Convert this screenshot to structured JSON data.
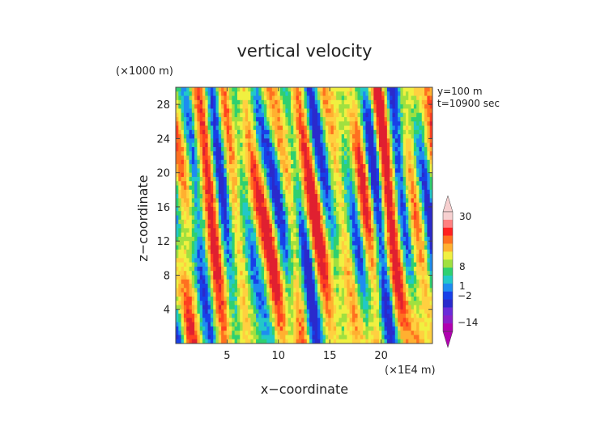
{
  "chart_data": {
    "type": "heatmap",
    "title": "vertical velocity",
    "xlabel": "x−coordinate",
    "ylabel": "z−coordinate",
    "x_unit": "(×1E4 m)",
    "y_unit": "(×1000 m)",
    "xlim": [
      0,
      25
    ],
    "ylim": [
      0,
      30
    ],
    "x_ticks": [
      5,
      10,
      15,
      20
    ],
    "y_ticks": [
      4,
      8,
      12,
      16,
      20,
      24,
      28
    ],
    "annotations": [
      "y=100 m",
      "t=10900 sec"
    ],
    "colorbar": {
      "tick_labels": [
        "30",
        "8",
        "1",
        "−2",
        "−14"
      ],
      "tick_values": [
        30,
        8,
        1,
        -2,
        -14
      ],
      "levels": [
        -20,
        -14,
        -8,
        -4,
        -2,
        0,
        1,
        2,
        4,
        6,
        8,
        14,
        20,
        30,
        40
      ],
      "colors": [
        "#b000b0",
        "#8a1fc8",
        "#6a2bd8",
        "#2a2acc",
        "#1840e8",
        "#1e8cf0",
        "#22c8c8",
        "#2fd070",
        "#a0e040",
        "#f0f040",
        "#ffb030",
        "#ff7020",
        "#ff2020",
        "#ff8080",
        "#f7d0d0"
      ]
    },
    "grid": false,
    "legend": "right"
  },
  "ui": {
    "colorbar_label_30": "30",
    "colorbar_label_8": "8",
    "colorbar_label_1": "1",
    "colorbar_label_m2": "−2",
    "colorbar_label_m14": "−14"
  }
}
